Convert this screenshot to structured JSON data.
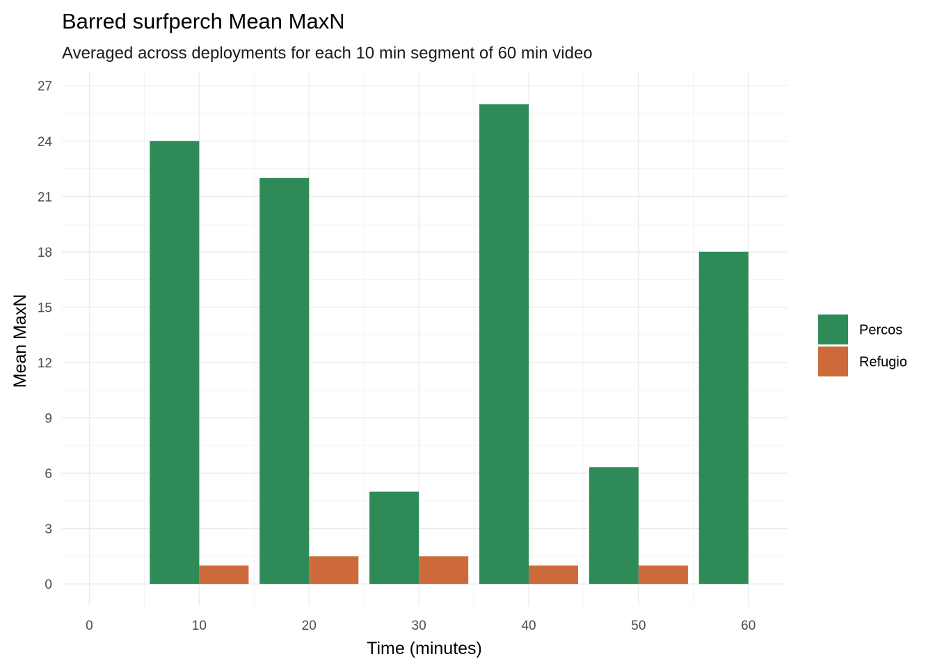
{
  "chart_data": {
    "type": "bar",
    "title": "Barred surfperch Mean MaxN",
    "subtitle": "Averaged across deployments for each 10 min segment of 60 min video",
    "xlabel": "Time (minutes)",
    "ylabel": "Mean MaxN",
    "x": [
      10,
      20,
      30,
      40,
      50,
      60
    ],
    "xticks": [
      "0",
      "10",
      "20",
      "30",
      "40",
      "50",
      "60"
    ],
    "yticks": [
      "0",
      "3",
      "6",
      "9",
      "12",
      "15",
      "18",
      "21",
      "24",
      "27"
    ],
    "xlim": [
      -2.5,
      63.5
    ],
    "ylim": [
      -1.2,
      27.8
    ],
    "grid": true,
    "legend_position": "right",
    "series": [
      {
        "name": "Percos",
        "color": "#2E8B57",
        "values": [
          24,
          22,
          5,
          26,
          6.33,
          18
        ]
      },
      {
        "name": "Refugio",
        "color": "#CD6A3C",
        "values": [
          1,
          1.5,
          1.5,
          1,
          1,
          null
        ]
      }
    ]
  }
}
